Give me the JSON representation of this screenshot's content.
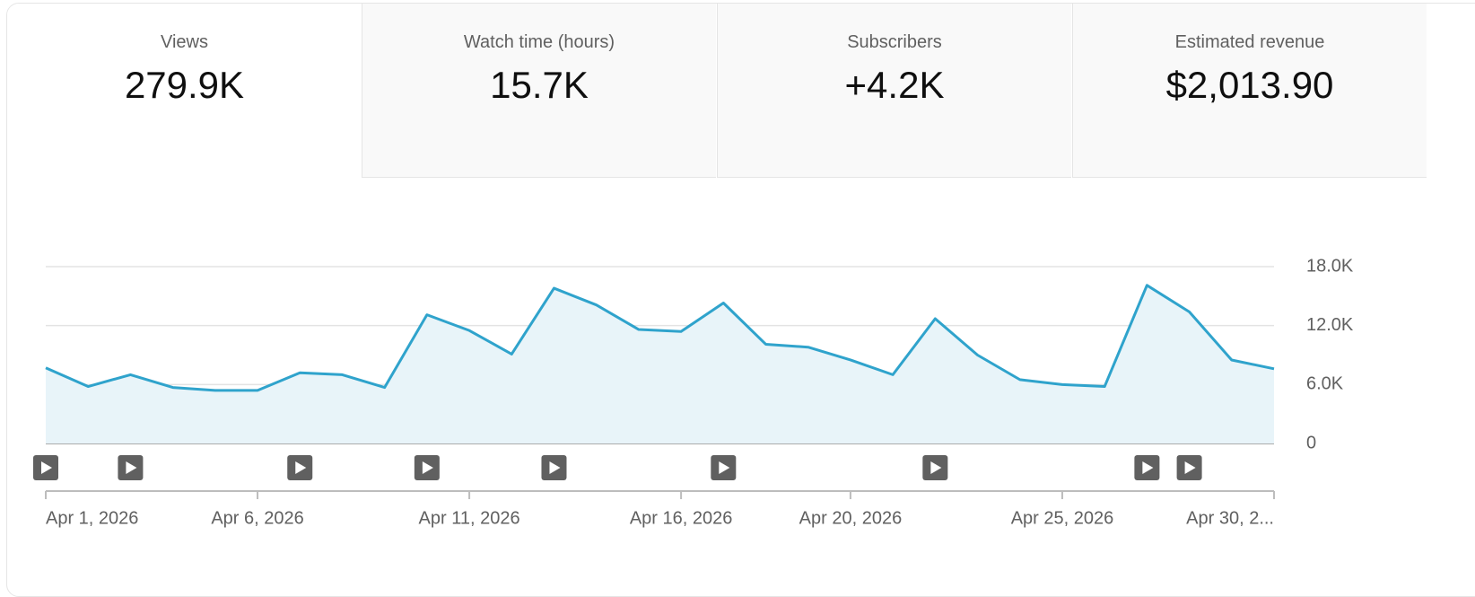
{
  "tabs": [
    {
      "label": "Views",
      "value": "279.9K"
    },
    {
      "label": "Watch time (hours)",
      "value": "15.7K"
    },
    {
      "label": "Subscribers",
      "value": "+4.2K"
    },
    {
      "label": "Estimated revenue",
      "value": "$2,013.90"
    }
  ],
  "chart_data": {
    "type": "area",
    "color": "#2fa3cc",
    "fill": "#e8f4f9",
    "grid": true,
    "x": [
      "Apr 1, 2026",
      "Apr 2, 2026",
      "Apr 3, 2026",
      "Apr 4, 2026",
      "Apr 5, 2026",
      "Apr 6, 2026",
      "Apr 7, 2026",
      "Apr 8, 2026",
      "Apr 9, 2026",
      "Apr 10, 2026",
      "Apr 11, 2026",
      "Apr 12, 2026",
      "Apr 13, 2026",
      "Apr 14, 2026",
      "Apr 15, 2026",
      "Apr 16, 2026",
      "Apr 17, 2026",
      "Apr 18, 2026",
      "Apr 19, 2026",
      "Apr 20, 2026",
      "Apr 21, 2026",
      "Apr 22, 2026",
      "Apr 23, 2026",
      "Apr 24, 2026",
      "Apr 25, 2026",
      "Apr 26, 2026",
      "Apr 27, 2026",
      "Apr 28, 2026",
      "Apr 29, 2026",
      "Apr 30, 2026"
    ],
    "values": [
      7700,
      5800,
      7000,
      5700,
      5400,
      5400,
      7200,
      7000,
      5700,
      13100,
      11500,
      9100,
      15800,
      14100,
      11600,
      11400,
      14300,
      10100,
      9800,
      8500,
      7000,
      12700,
      9000,
      6500,
      6000,
      5800,
      16100,
      13400,
      8500,
      7600
    ],
    "video_markers": [
      "Apr 1, 2026",
      "Apr 3, 2026",
      "Apr 7, 2026",
      "Apr 10, 2026",
      "Apr 13, 2026",
      "Apr 17, 2026",
      "Apr 22, 2026",
      "Apr 27, 2026",
      "Apr 28, 2026"
    ],
    "xticks": [
      "Apr 1, 2026",
      "Apr 6, 2026",
      "Apr 11, 2026",
      "Apr 16, 2026",
      "Apr 20, 2026",
      "Apr 25, 2026",
      {
        "value": "Apr 30, 2026",
        "label": "Apr 30, 2..."
      }
    ],
    "ylim": [
      0,
      18000
    ],
    "yticks": [
      0,
      {
        "value": 6000,
        "label": "6.0K"
      },
      {
        "value": 12000,
        "label": "12.0K"
      },
      {
        "value": 18000,
        "label": "18.0K"
      }
    ]
  }
}
